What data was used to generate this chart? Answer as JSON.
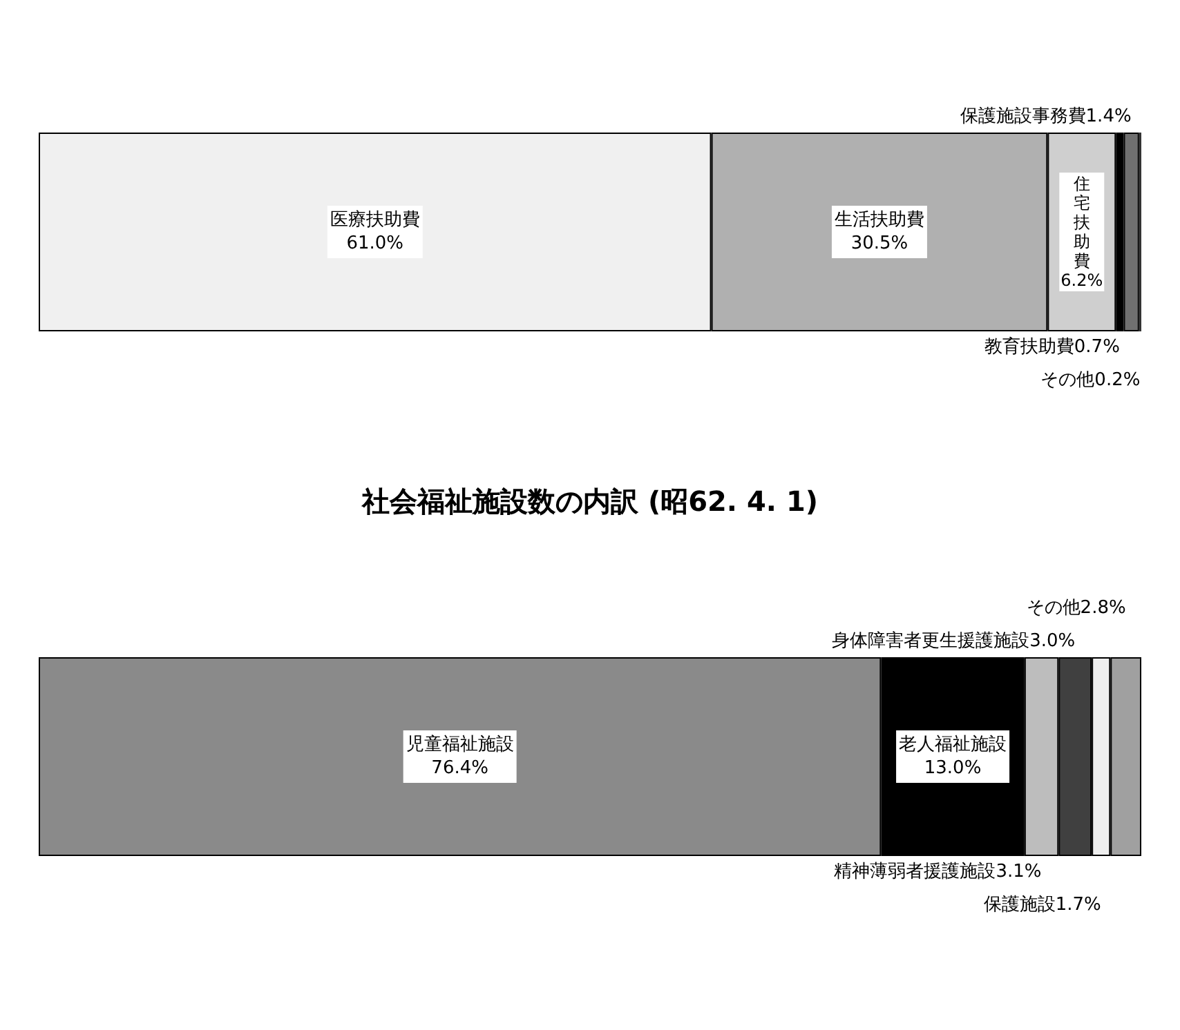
{
  "chart_data": [
    {
      "type": "bar",
      "orientation": "horizontal",
      "stacked": true,
      "categories": [
        null
      ],
      "tick_labels": false,
      "legend": false,
      "series": [
        {
          "name": "医療扶助費",
          "color": "#f0f0f0",
          "values": [
            61.0
          ],
          "value_labels": [
            "61.0%"
          ]
        },
        {
          "name": "生活扶助費",
          "color": "#b0b0b0",
          "values": [
            30.5
          ],
          "value_labels": [
            "30.5%"
          ]
        },
        {
          "name": "住宅扶助費",
          "color": "#cfcfcf",
          "values": [
            6.2
          ],
          "value_labels": [
            "6.2%"
          ]
        },
        {
          "name": "教育扶助費",
          "color": "#000000",
          "values": [
            0.7
          ],
          "value_labels": [
            "0.7%"
          ]
        },
        {
          "name": "保護施設事務費",
          "color": "#707070",
          "values": [
            1.4
          ],
          "value_labels": [
            "1.4%"
          ]
        },
        {
          "name": "その他",
          "color": "#333333",
          "values": [
            0.2
          ],
          "value_labels": [
            "0.2%"
          ]
        }
      ]
    },
    {
      "type": "bar",
      "orientation": "horizontal",
      "stacked": true,
      "title": "社会福祉施設数の内訳 (昭62. 4. 1)",
      "categories": [
        null
      ],
      "tick_labels": false,
      "legend": false,
      "series": [
        {
          "name": "児童福祉施設",
          "color": "#8a8a8a",
          "values": [
            76.4
          ],
          "value_labels": [
            "76.4%"
          ]
        },
        {
          "name": "老人福祉施設",
          "color": "#000000",
          "values": [
            13.0
          ],
          "value_labels": [
            "13.0%"
          ]
        },
        {
          "name": "精神薄弱者援護施設",
          "color": "#bdbdbd",
          "values": [
            3.1
          ],
          "value_labels": [
            "3.1%"
          ]
        },
        {
          "name": "身体障害者更生援護施設",
          "color": "#404040",
          "values": [
            3.0
          ],
          "value_labels": [
            "3.0%"
          ]
        },
        {
          "name": "保護施設",
          "color": "#eeeeee",
          "values": [
            1.7
          ],
          "value_labels": [
            "1.7%"
          ]
        },
        {
          "name": "その他",
          "color": "#a0a0a0",
          "values": [
            2.8
          ],
          "value_labels": [
            "2.8%"
          ]
        }
      ]
    }
  ]
}
